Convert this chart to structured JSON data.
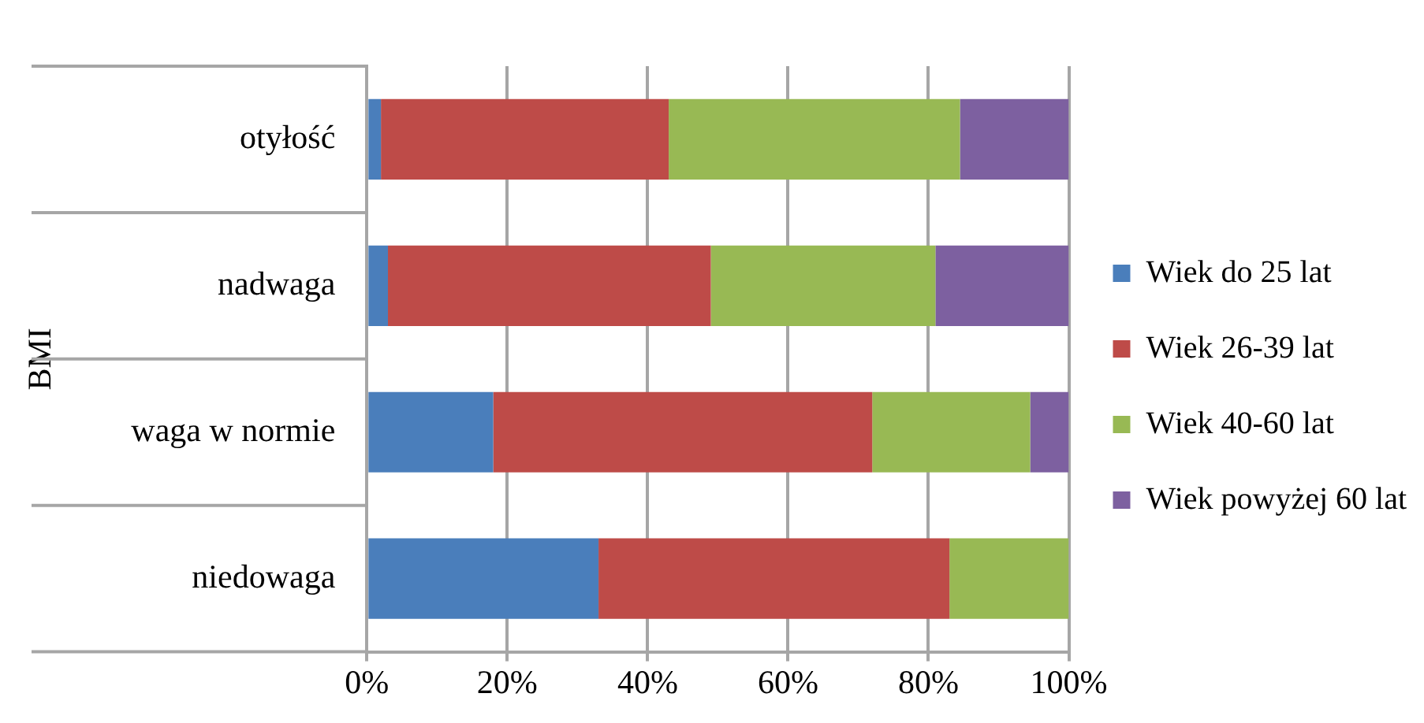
{
  "chart_data": {
    "type": "bar",
    "orientation": "horizontal",
    "stacked": true,
    "ylabel": "BMI",
    "categories": [
      "otyłość",
      "nadwaga",
      "waga w normie",
      "niedowaga"
    ],
    "series": [
      {
        "name": "Wiek do 25 lat",
        "color": "#4a7ebb",
        "values": [
          2,
          3,
          18,
          33
        ]
      },
      {
        "name": "Wiek 26-39 lat",
        "color": "#be4b48",
        "values": [
          41,
          46,
          54,
          50
        ]
      },
      {
        "name": "Wiek 40-60 lat",
        "color": "#98b954",
        "values": [
          41.5,
          32,
          22.5,
          17
        ]
      },
      {
        "name": "Wiek powyżej 60 lat",
        "color": "#7d60a0",
        "values": [
          15.5,
          19,
          5.5,
          0
        ]
      }
    ],
    "xlim": [
      0,
      100
    ],
    "xticks": [
      {
        "value": 0,
        "label": "0%"
      },
      {
        "value": 20,
        "label": "20%"
      },
      {
        "value": 40,
        "label": "40%"
      },
      {
        "value": 60,
        "label": "60%"
      },
      {
        "value": 80,
        "label": "80%"
      },
      {
        "value": 100,
        "label": "100%"
      }
    ],
    "grid": "x",
    "legend": "right"
  }
}
